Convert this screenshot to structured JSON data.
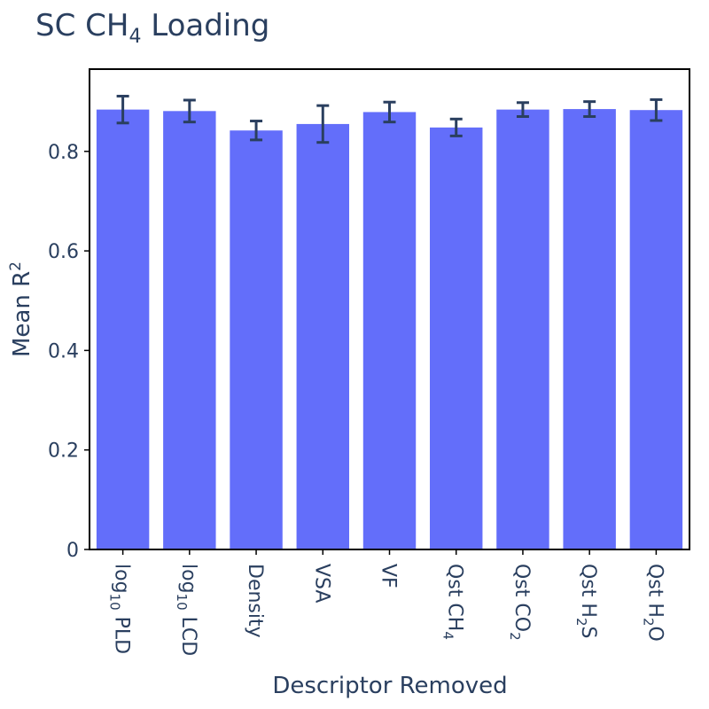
{
  "chart_data": {
    "type": "bar",
    "title": {
      "main": "SC CH",
      "sub": "4",
      "rest": " Loading"
    },
    "xlabel": "Descriptor Removed",
    "ylabel": {
      "main": "Mean R",
      "sup": "2"
    },
    "ylim": [
      0,
      0.96
    ],
    "yticks": [
      {
        "value": 0,
        "label": "0"
      },
      {
        "value": 0.2,
        "label": "0.2"
      },
      {
        "value": 0.4,
        "label": "0.4"
      },
      {
        "value": 0.6,
        "label": "0.6"
      },
      {
        "value": 0.8,
        "label": "0.8"
      }
    ],
    "categories": [
      {
        "parts": [
          {
            "t": "log"
          },
          {
            "t": "10",
            "sub": true
          },
          {
            "t": " PLD"
          }
        ]
      },
      {
        "parts": [
          {
            "t": "log"
          },
          {
            "t": "10",
            "sub": true
          },
          {
            "t": " LCD"
          }
        ]
      },
      {
        "parts": [
          {
            "t": "Density"
          }
        ]
      },
      {
        "parts": [
          {
            "t": "VSA"
          }
        ]
      },
      {
        "parts": [
          {
            "t": "VF"
          }
        ]
      },
      {
        "parts": [
          {
            "t": "Qst CH"
          },
          {
            "t": "4",
            "sub": true
          }
        ]
      },
      {
        "parts": [
          {
            "t": "Qst CO"
          },
          {
            "t": "2",
            "sub": true
          }
        ]
      },
      {
        "parts": [
          {
            "t": "Qst H"
          },
          {
            "t": "2",
            "sub": true
          },
          {
            "t": "S"
          }
        ]
      },
      {
        "parts": [
          {
            "t": "Qst H"
          },
          {
            "t": "2",
            "sub": true
          },
          {
            "t": "O"
          }
        ]
      }
    ],
    "values": [
      0.884,
      0.881,
      0.842,
      0.855,
      0.879,
      0.848,
      0.884,
      0.885,
      0.883
    ],
    "error": [
      0.027,
      0.022,
      0.019,
      0.037,
      0.02,
      0.017,
      0.014,
      0.015,
      0.021
    ],
    "colors": {
      "bar": "#636efa",
      "error_bar": "#2a3f5f",
      "text": "#2a3f5f"
    },
    "grid": false,
    "legend": "none"
  }
}
